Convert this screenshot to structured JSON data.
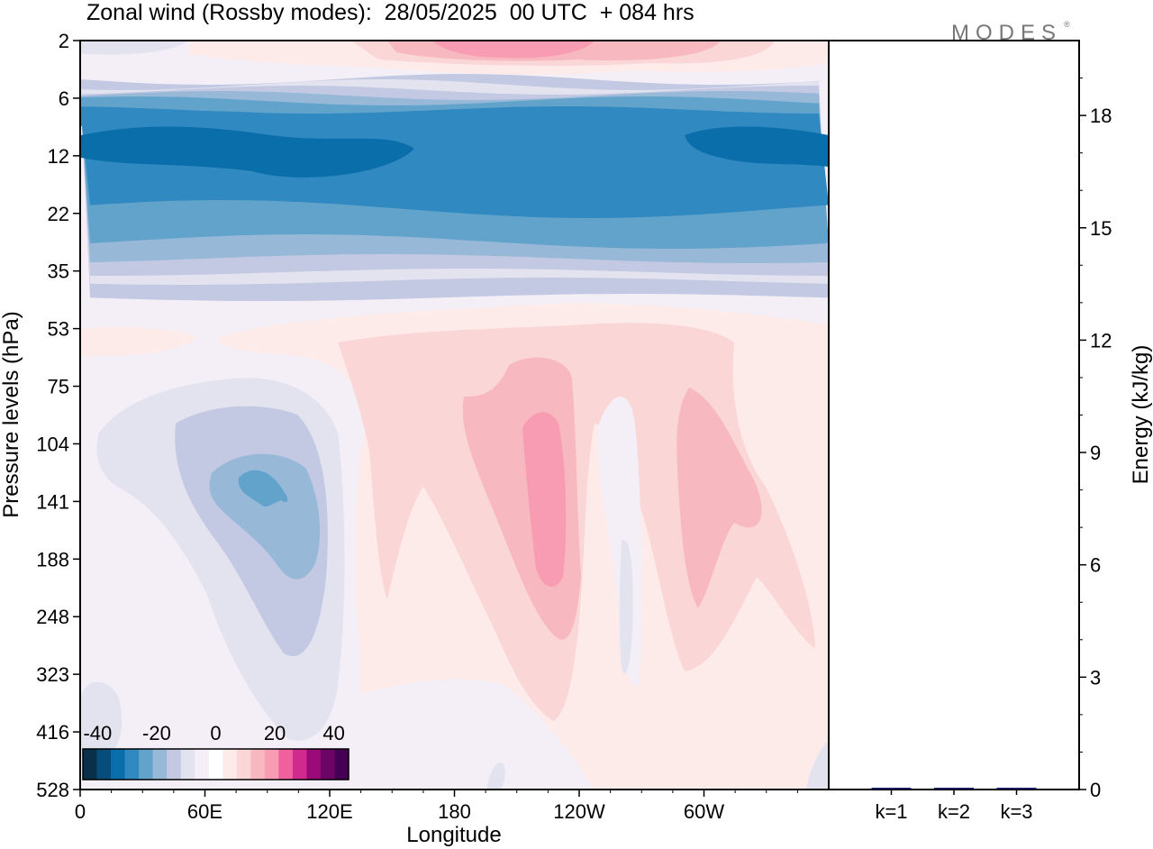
{
  "title": "Zonal wind (Rossby modes):  28/05/2025  00 UTC  + 084 hrs",
  "logo_text": "MODES",
  "chart_data": [
    {
      "type": "heatmap",
      "xlabel": "Longitude",
      "ylabel": "Pressure levels (hPa)",
      "x_ticks": [
        {
          "label": "0",
          "lon": 0
        },
        {
          "label": "60E",
          "lon": 60
        },
        {
          "label": "120E",
          "lon": 120
        },
        {
          "label": "180",
          "lon": 180
        },
        {
          "label": "120W",
          "lon": 240
        },
        {
          "label": "60W",
          "lon": 300
        }
      ],
      "xlim": [
        0,
        360
      ],
      "y_levels": [
        "2",
        "6",
        "12",
        "22",
        "35",
        "53",
        "75",
        "104",
        "141",
        "188",
        "248",
        "323",
        "416",
        "528"
      ],
      "colorbar": {
        "tick_labels": [
          "-40",
          "-20",
          "0",
          "20",
          "40"
        ],
        "levels": [
          -45,
          -40,
          -35,
          -30,
          -25,
          -20,
          -15,
          -10,
          -5,
          0,
          5,
          10,
          15,
          20,
          25,
          30,
          35,
          40,
          45
        ],
        "colors": [
          "#08304a",
          "#074d7c",
          "#0a6eaa",
          "#3089c0",
          "#62a3cc",
          "#98b8d8",
          "#c3c9e2",
          "#e3e3f0",
          "#f4eef6",
          "#ffffff",
          "#fdebea",
          "#fad6d6",
          "#f8b8bf",
          "#f79cb2",
          "#f0609e",
          "#d02a8e",
          "#9a0a78",
          "#6d0566",
          "#460053"
        ]
      },
      "features": [
        {
          "type": "easterly-band",
          "pressure_range": [
            "6",
            "35"
          ],
          "min_value": -35
        },
        {
          "type": "westerly-top",
          "pressure": "2",
          "max_value": 15
        },
        {
          "type": "negative-core",
          "lon": 85,
          "pressure": "141",
          "value": -25
        },
        {
          "type": "positive-core",
          "lon": 208,
          "pressure": "141",
          "value": 15
        },
        {
          "type": "positive-lobe",
          "lon": 180,
          "pressure": "188",
          "value": 10
        },
        {
          "type": "positive-lobe",
          "lon": 295,
          "pressure": "141",
          "value": 10
        }
      ]
    },
    {
      "type": "bar",
      "ylabel": "Energy (kJ/kg)",
      "categories": [
        "k=1",
        "k=2",
        "k=3"
      ],
      "values": [
        0.04,
        0.03,
        0.03
      ],
      "y_ticks": [
        "0",
        "3",
        "6",
        "9",
        "12",
        "15",
        "18"
      ],
      "ylim": [
        0,
        20
      ],
      "bar_color": "#1a1a5e"
    }
  ]
}
